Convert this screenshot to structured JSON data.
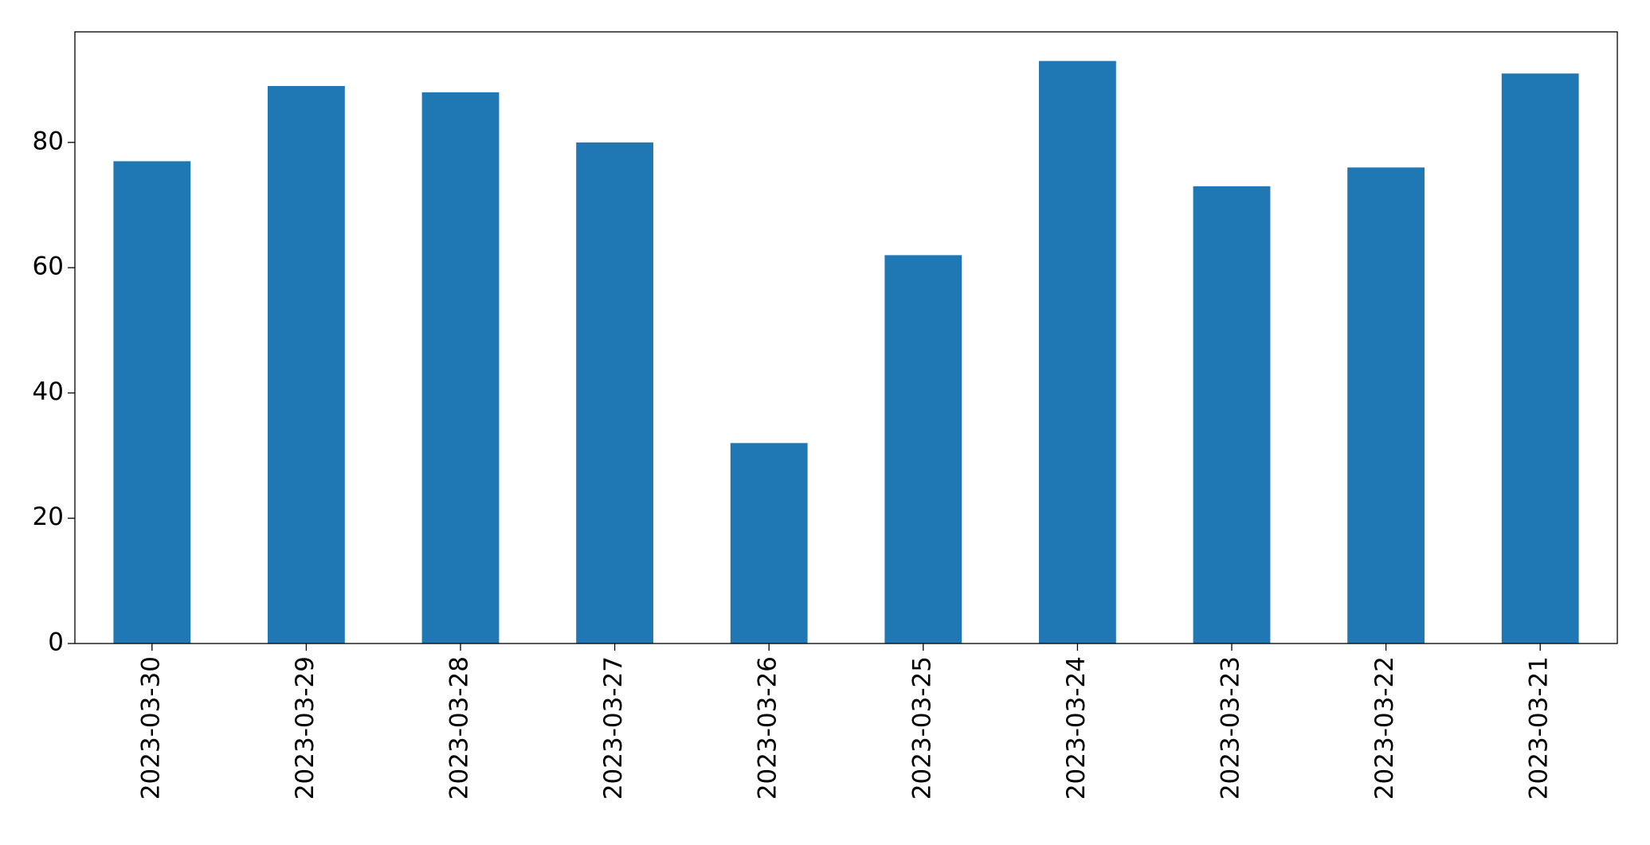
{
  "chart_data": {
    "type": "bar",
    "categories": [
      "2023-03-30",
      "2023-03-29",
      "2023-03-28",
      "2023-03-27",
      "2023-03-26",
      "2023-03-25",
      "2023-03-24",
      "2023-03-23",
      "2023-03-22",
      "2023-03-21"
    ],
    "values": [
      77,
      89,
      88,
      80,
      32,
      62,
      93,
      73,
      76,
      91
    ],
    "color": "#1f77b4",
    "ylim": [
      0,
      97.65
    ],
    "yticks": [
      0,
      20,
      40,
      60,
      80
    ],
    "grid": false
  }
}
